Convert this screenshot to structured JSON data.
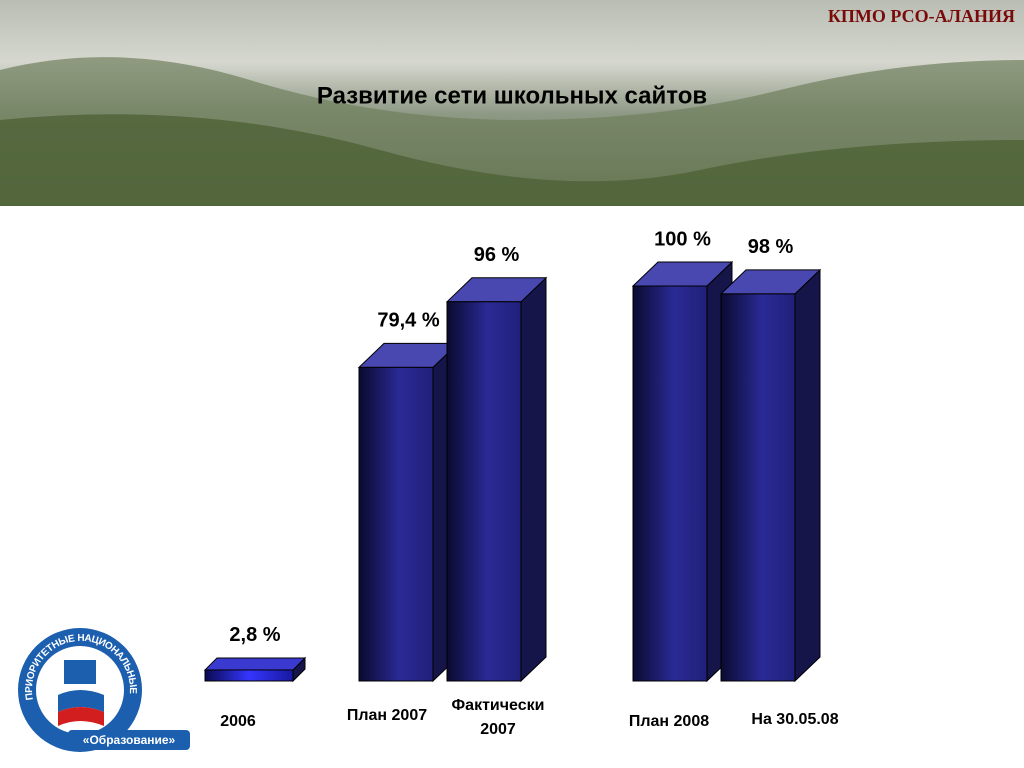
{
  "header": {
    "org": "КПМО РСО-АЛАНИЯ"
  },
  "logo": {
    "arc_text": "ПРИОРИТЕТНЫЕ НАЦИОНАЛЬНЫЕ ПРОЕКТЫ",
    "label": "«Образование»"
  },
  "chart_data": {
    "type": "bar3d",
    "title": "Развитие сети школьных сайтов",
    "categories": [
      "2006",
      "План 2007",
      "Фактически 2007",
      "План 2008",
      "На 30.05.08"
    ],
    "values": [
      2.8,
      79.4,
      96,
      100,
      98
    ],
    "value_labels": [
      "2,8 %",
      "79,4 %",
      "96 %",
      "100 %",
      "98 %"
    ],
    "color": "#26268c"
  }
}
